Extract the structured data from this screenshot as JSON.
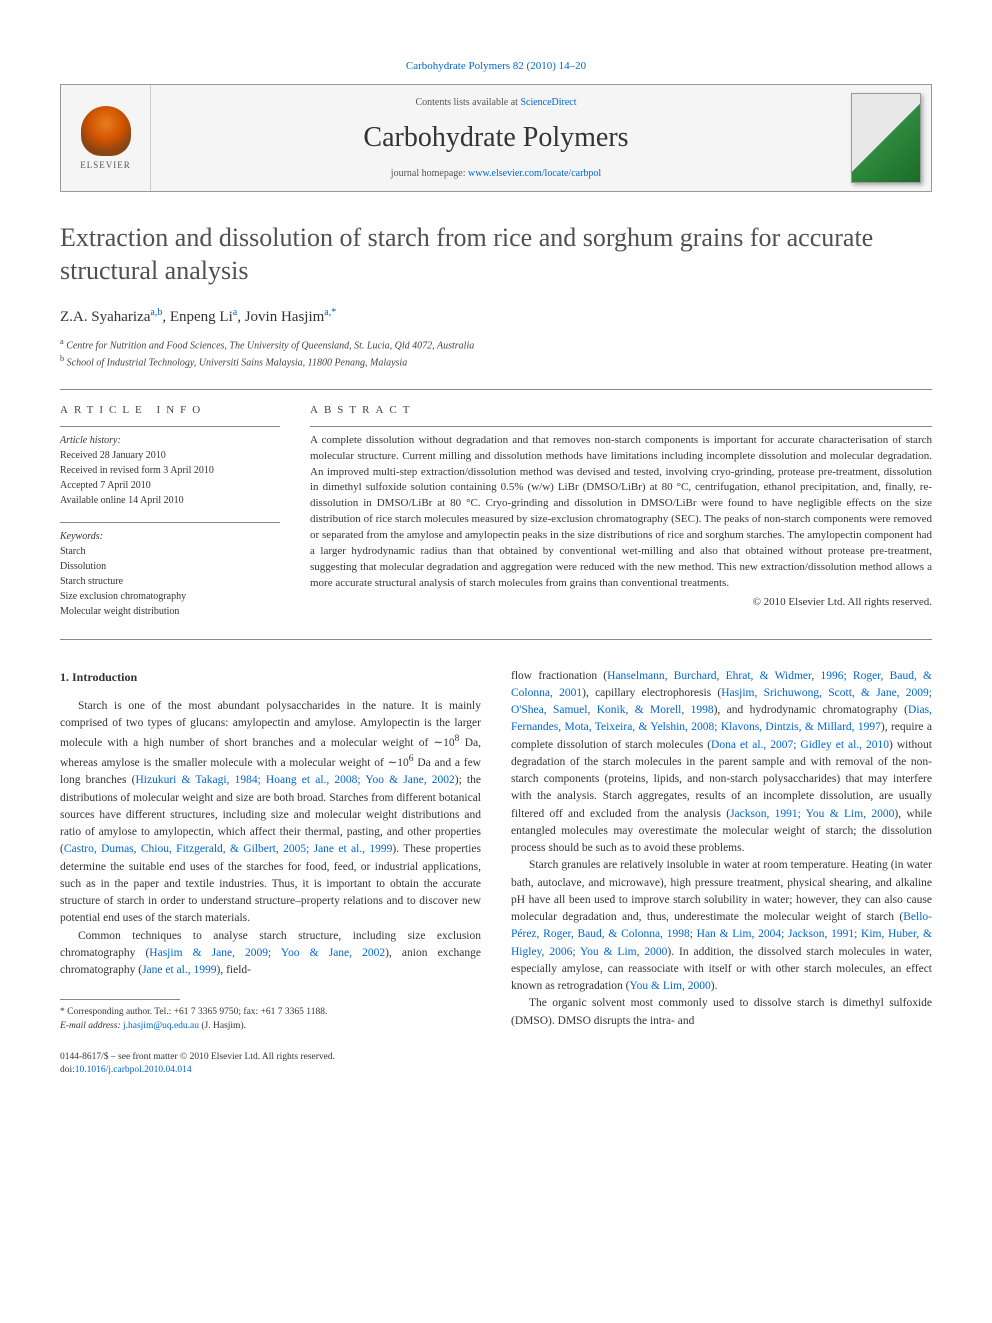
{
  "journal_ref": "Carbohydrate Polymers 82 (2010) 14–20",
  "header": {
    "contents_prefix": "Contents lists available at ",
    "contents_link": "ScienceDirect",
    "journal_name": "Carbohydrate Polymers",
    "homepage_prefix": "journal homepage: ",
    "homepage_url": "www.elsevier.com/locate/carbpol",
    "publisher": "ELSEVIER"
  },
  "title": "Extraction and dissolution of starch from rice and sorghum grains for accurate structural analysis",
  "authors_html": "Z.A. Syahariza",
  "authors": [
    {
      "name": "Z.A. Syahariza",
      "sup": "a,b"
    },
    {
      "name": "Enpeng Li",
      "sup": "a"
    },
    {
      "name": "Jovin Hasjim",
      "sup": "a,*"
    }
  ],
  "affiliations": [
    {
      "sup": "a",
      "text": "Centre for Nutrition and Food Sciences, The University of Queensland, St. Lucia, Qld 4072, Australia"
    },
    {
      "sup": "b",
      "text": "School of Industrial Technology, Universiti Sains Malaysia, 11800 Penang, Malaysia"
    }
  ],
  "info_label": "ARTICLE INFO",
  "abstract_label": "ABSTRACT",
  "history": {
    "header": "Article history:",
    "received": "Received 28 January 2010",
    "revised": "Received in revised form 3 April 2010",
    "accepted": "Accepted 7 April 2010",
    "online": "Available online 14 April 2010"
  },
  "keywords": {
    "header": "Keywords:",
    "items": [
      "Starch",
      "Dissolution",
      "Starch structure",
      "Size exclusion chromatography",
      "Molecular weight distribution"
    ]
  },
  "abstract": "A complete dissolution without degradation and that removes non-starch components is important for accurate characterisation of starch molecular structure. Current milling and dissolution methods have limitations including incomplete dissolution and molecular degradation. An improved multi-step extraction/dissolution method was devised and tested, involving cryo-grinding, protease pre-treatment, dissolution in dimethyl sulfoxide solution containing 0.5% (w/w) LiBr (DMSO/LiBr) at 80 °C, centrifugation, ethanol precipitation, and, finally, re-dissolution in DMSO/LiBr at 80 °C. Cryo-grinding and dissolution in DMSO/LiBr were found to have negligible effects on the size distribution of rice starch molecules measured by size-exclusion chromatography (SEC). The peaks of non-starch components were removed or separated from the amylose and amylopectin peaks in the size distributions of rice and sorghum starches. The amylopectin component had a larger hydrodynamic radius than that obtained by conventional wet-milling and also that obtained without protease pre-treatment, suggesting that molecular degradation and aggregation were reduced with the new method. This new extraction/dissolution method allows a more accurate structural analysis of starch molecules from grains than conventional treatments.",
  "copyright": "© 2010 Elsevier Ltd. All rights reserved.",
  "intro_heading": "1. Introduction",
  "body": {
    "left_p1a": "Starch is one of the most abundant polysaccharides in the nature. It is mainly comprised of two types of glucans: amylopectin and amylose. Amylopectin is the larger molecule with a high number of short branches and a molecular weight of ∼10",
    "left_p1a_sup": "8",
    "left_p1b": " Da, whereas amylose is the smaller molecule with a molecular weight of ∼10",
    "left_p1b_sup": "6",
    "left_p1c": " Da and a few long branches (",
    "left_ref1": "Hizukuri & Takagi, 1984; Hoang et al., 2008; Yoo & Jane, 2002",
    "left_p1d": "); the distributions of molecular weight and size are both broad. Starches from different botanical sources have different structures, including size and molecular weight distributions and ratio of amylose to amylopectin, which affect their thermal, pasting, and other properties (",
    "left_ref2": "Castro, Dumas, Chiou, Fitzgerald, & Gilbert, 2005; Jane et al., 1999",
    "left_p1e": "). These properties determine the suitable end uses of the starches for food, feed, or industrial applications, such as in the paper and textile industries. Thus, it is important to obtain the accurate structure of starch in order to understand structure–property relations and to discover new potential end uses of the starch materials.",
    "left_p2a": "Common techniques to analyse starch structure, including size exclusion chromatography (",
    "left_ref3": "Hasjim & Jane, 2009; Yoo & Jane, 2002",
    "left_p2b": "), anion exchange chromatography (",
    "left_ref4": "Jane et al., 1999",
    "left_p2c": "), field-",
    "right_p1a": "flow fractionation (",
    "right_ref1": "Hanselmann, Burchard, Ehrat, & Widmer, 1996; Roger, Baud, & Colonna, 2001",
    "right_p1b": "), capillary electrophoresis (",
    "right_ref2": "Hasjim, Srichuwong, Scott, & Jane, 2009; O'Shea, Samuel, Konik, & Morell, 1998",
    "right_p1c": "), and hydrodynamic chromatography (",
    "right_ref3": "Dias, Fernandes, Mota, Teixeira, & Yelshin, 2008; Klavons, Dintzis, & Millard, 1997",
    "right_p1d": "), require a complete dissolution of starch molecules (",
    "right_ref4": "Dona et al., 2007; Gidley et al., 2010",
    "right_p1e": ") without degradation of the starch molecules in the parent sample and with removal of the non-starch components (proteins, lipids, and non-starch polysaccharides) that may interfere with the analysis. Starch aggregates, results of an incomplete dissolution, are usually filtered off and excluded from the analysis (",
    "right_ref5": "Jackson, 1991; You & Lim, 2000",
    "right_p1f": "), while entangled molecules may overestimate the molecular weight of starch; the dissolution process should be such as to avoid these problems.",
    "right_p2a": "Starch granules are relatively insoluble in water at room temperature. Heating (in water bath, autoclave, and microwave), high pressure treatment, physical shearing, and alkaline pH have all been used to improve starch solubility in water; however, they can also cause molecular degradation and, thus, underestimate the molecular weight of starch (",
    "right_ref6": "Bello-Pérez, Roger, Baud, & Colonna, 1998; Han & Lim, 2004; Jackson, 1991; Kim, Huber, & Higley, 2006; You & Lim, 2000",
    "right_p2b": "). In addition, the dissolved starch molecules in water, especially amylose, can reassociate with itself or with other starch molecules, an effect known as retrogradation (",
    "right_ref7": "You & Lim, 2000",
    "right_p2c": ").",
    "right_p3": "The organic solvent most commonly used to dissolve starch is dimethyl sulfoxide (DMSO). DMSO disrupts the intra- and"
  },
  "footnote": {
    "corr": "* Corresponding author. Tel.: +61 7 3365 9750; fax: +61 7 3365 1188.",
    "email_label": "E-mail address: ",
    "email": "j.hasjim@uq.edu.au",
    "email_who": " (J. Hasjim)."
  },
  "footer": {
    "issn": "0144-8617/$ – see front matter © 2010 Elsevier Ltd. All rights reserved.",
    "doi_label": "doi:",
    "doi": "10.1016/j.carbpol.2010.04.014"
  },
  "colors": {
    "link": "#0066cc",
    "text": "#333333",
    "title": "#505050",
    "rule": "#888888",
    "bg": "#ffffff"
  }
}
